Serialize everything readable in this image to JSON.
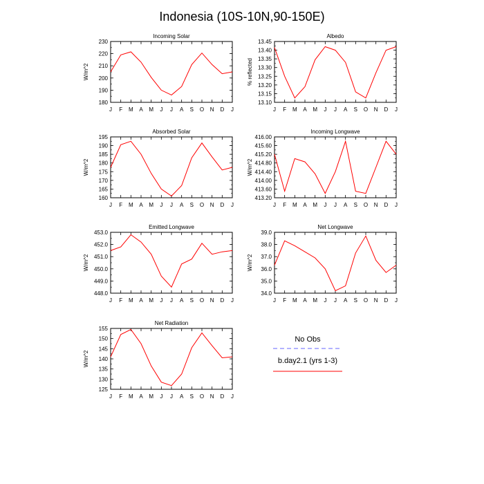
{
  "figure_title": "Indonesia (10S-10N,90-150E)",
  "months": [
    "J",
    "F",
    "M",
    "A",
    "M",
    "J",
    "J",
    "A",
    "S",
    "O",
    "N",
    "D",
    "J"
  ],
  "colors": {
    "model": "#ff0000",
    "obs": "#6666ff",
    "axis": "#000000"
  },
  "legend": {
    "obs_label": "No Obs",
    "model_label": "b.day2.1 (yrs 1-3)"
  },
  "chart_data": [
    {
      "type": "line",
      "title": "Incoming Solar",
      "ylabel": "W/m^2",
      "ylim": [
        180,
        230
      ],
      "yticks": [
        180,
        190,
        200,
        210,
        220,
        230
      ],
      "ytick_labels": [
        "180",
        "190",
        "200",
        "210",
        "220",
        "230"
      ],
      "yminor": 5,
      "categories": [
        "J",
        "F",
        "M",
        "A",
        "M",
        "J",
        "J",
        "A",
        "S",
        "O",
        "N",
        "D",
        "J"
      ],
      "series": [
        {
          "name": "b.day2.1 (yrs 1-3)",
          "values": [
            205,
            219,
            221.5,
            213,
            200.5,
            190,
            186,
            193,
            211,
            220.5,
            211,
            203.5,
            205
          ]
        }
      ]
    },
    {
      "type": "line",
      "title": "Albedo",
      "ylabel": "% reflected",
      "ylim": [
        13.1,
        13.45
      ],
      "yticks": [
        13.1,
        13.15,
        13.2,
        13.25,
        13.3,
        13.35,
        13.4,
        13.45
      ],
      "ytick_labels": [
        "13.10",
        "13.15",
        "13.20",
        "13.25",
        "13.30",
        "13.35",
        "13.40",
        "13.45"
      ],
      "yminor": 0.025,
      "categories": [
        "J",
        "F",
        "M",
        "A",
        "M",
        "J",
        "J",
        "A",
        "S",
        "O",
        "N",
        "D",
        "J"
      ],
      "series": [
        {
          "name": "b.day2.1 (yrs 1-3)",
          "values": [
            13.415,
            13.25,
            13.125,
            13.19,
            13.345,
            13.42,
            13.4,
            13.33,
            13.16,
            13.125,
            13.27,
            13.4,
            13.42
          ]
        }
      ]
    },
    {
      "type": "line",
      "title": "Absorbed Solar",
      "ylabel": "W/m^2",
      "ylim": [
        160,
        195
      ],
      "yticks": [
        160,
        165,
        170,
        175,
        180,
        185,
        190,
        195
      ],
      "ytick_labels": [
        "160",
        "165",
        "170",
        "175",
        "180",
        "185",
        "190",
        "195"
      ],
      "yminor": 2.5,
      "categories": [
        "J",
        "F",
        "M",
        "A",
        "M",
        "J",
        "J",
        "A",
        "S",
        "O",
        "N",
        "D",
        "J"
      ],
      "series": [
        {
          "name": "b.day2.1 (yrs 1-3)",
          "values": [
            177.5,
            190.5,
            192.5,
            185,
            174,
            165,
            161,
            167,
            183,
            191.5,
            183.5,
            176,
            177.5
          ]
        }
      ]
    },
    {
      "type": "line",
      "title": "Incoming Longwave",
      "ylabel": "W/m^2",
      "ylim": [
        413.2,
        416.0
      ],
      "yticks": [
        413.2,
        413.6,
        414.0,
        414.4,
        414.8,
        415.2,
        415.6,
        416.0
      ],
      "ytick_labels": [
        "413.20",
        "413.60",
        "414.00",
        "414.40",
        "414.80",
        "415.20",
        "415.60",
        "416.00"
      ],
      "yminor": 0.2,
      "categories": [
        "J",
        "F",
        "M",
        "A",
        "M",
        "J",
        "J",
        "A",
        "S",
        "O",
        "N",
        "D",
        "J"
      ],
      "series": [
        {
          "name": "b.day2.1 (yrs 1-3)",
          "values": [
            415.2,
            413.5,
            415.0,
            414.85,
            414.3,
            413.4,
            414.4,
            415.8,
            413.5,
            413.4,
            414.6,
            415.8,
            415.2
          ]
        }
      ]
    },
    {
      "type": "line",
      "title": "Emitted Longwave",
      "ylabel": "W/m^2",
      "ylim": [
        448.0,
        453.0
      ],
      "yticks": [
        448.0,
        449.0,
        450.0,
        451.0,
        452.0,
        453.0
      ],
      "ytick_labels": [
        "448.0",
        "449.0",
        "450.0",
        "451.0",
        "452.0",
        "453.0"
      ],
      "yminor": 0.5,
      "categories": [
        "J",
        "F",
        "M",
        "A",
        "M",
        "J",
        "J",
        "A",
        "S",
        "O",
        "N",
        "D",
        "J"
      ],
      "series": [
        {
          "name": "b.day2.1 (yrs 1-3)",
          "values": [
            451.5,
            451.8,
            452.8,
            452.2,
            451.2,
            449.4,
            448.5,
            450.4,
            450.8,
            452.1,
            451.2,
            451.4,
            451.5
          ]
        }
      ]
    },
    {
      "type": "line",
      "title": "Net Longwave",
      "ylabel": "W/m^2",
      "ylim": [
        34.0,
        39.0
      ],
      "yticks": [
        34.0,
        35.0,
        36.0,
        37.0,
        38.0,
        39.0
      ],
      "ytick_labels": [
        "34.0",
        "35.0",
        "36.0",
        "37.0",
        "38.0",
        "39.0"
      ],
      "yminor": 0.5,
      "categories": [
        "J",
        "F",
        "M",
        "A",
        "M",
        "J",
        "J",
        "A",
        "S",
        "O",
        "N",
        "D",
        "J"
      ],
      "series": [
        {
          "name": "b.day2.1 (yrs 1-3)",
          "values": [
            36.3,
            38.3,
            37.9,
            37.4,
            36.9,
            36.0,
            34.2,
            34.6,
            37.3,
            38.7,
            36.7,
            35.7,
            36.3
          ]
        }
      ]
    },
    {
      "type": "line",
      "title": "Net Radiation",
      "ylabel": "W/m^2",
      "ylim": [
        125,
        155
      ],
      "yticks": [
        125,
        130,
        135,
        140,
        145,
        150,
        155
      ],
      "ytick_labels": [
        "125",
        "130",
        "135",
        "140",
        "145",
        "150",
        "155"
      ],
      "yminor": 2.5,
      "categories": [
        "J",
        "F",
        "M",
        "A",
        "M",
        "J",
        "J",
        "A",
        "S",
        "O",
        "N",
        "D",
        "J"
      ],
      "series": [
        {
          "name": "b.day2.1 (yrs 1-3)",
          "values": [
            141,
            152,
            154.5,
            147.5,
            136.5,
            128.5,
            126.8,
            132.5,
            145.5,
            152.8,
            146.5,
            140.5,
            141
          ]
        }
      ]
    }
  ]
}
